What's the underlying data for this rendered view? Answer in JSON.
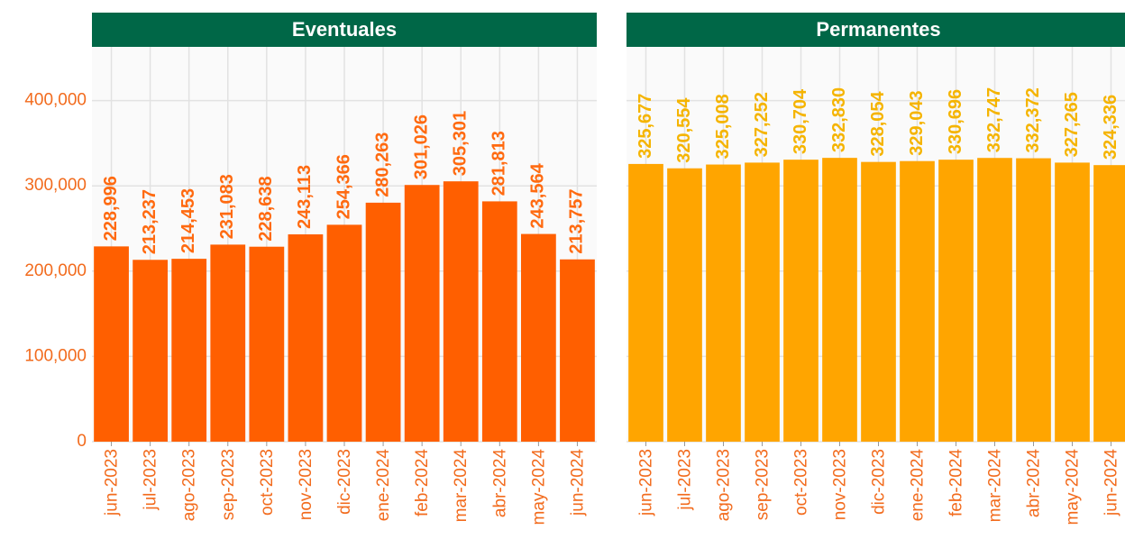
{
  "chart_data": [
    {
      "type": "bar",
      "title": "Eventuales",
      "color": "#ff5f00",
      "label_color": "#ff6a10",
      "categories": [
        "jun-2023",
        "jul-2023",
        "ago-2023",
        "sep-2023",
        "oct-2023",
        "nov-2023",
        "dic-2023",
        "ene-2024",
        "feb-2024",
        "mar-2024",
        "abr-2024",
        "may-2024",
        "jun-2024"
      ],
      "values": [
        228996,
        213237,
        214453,
        231083,
        228638,
        243113,
        254366,
        280263,
        301026,
        305301,
        281813,
        243564,
        213757
      ],
      "value_labels": [
        "228,996",
        "213,237",
        "214,453",
        "231,083",
        "228,638",
        "243,113",
        "254,366",
        "280,263",
        "301,026",
        "305,301",
        "281,813",
        "243,564",
        "213,757"
      ],
      "ylim": [
        0,
        463000
      ],
      "yticks": [
        {
          "value": 0,
          "label": "0"
        },
        {
          "value": 100000,
          "label": "100,000"
        },
        {
          "value": 200000,
          "label": "200,000"
        },
        {
          "value": 300000,
          "label": "300,000"
        },
        {
          "value": 400000,
          "label": "400,000"
        }
      ],
      "grid": true
    },
    {
      "type": "bar",
      "title": "Permanentes",
      "color": "#ffa500",
      "label_color": "#f5b400",
      "categories": [
        "jun-2023",
        "jul-2023",
        "ago-2023",
        "sep-2023",
        "oct-2023",
        "nov-2023",
        "dic-2023",
        "ene-2024",
        "feb-2024",
        "mar-2024",
        "abr-2024",
        "may-2024",
        "jun-2024"
      ],
      "values": [
        325677,
        320554,
        325008,
        327252,
        330704,
        332830,
        328054,
        329043,
        330696,
        332747,
        332372,
        327265,
        324336
      ],
      "value_labels": [
        "325,677",
        "320,554",
        "325,008",
        "327,252",
        "330,704",
        "332,830",
        "328,054",
        "329,043",
        "330,696",
        "332,747",
        "332,372",
        "327,265",
        "324,336"
      ],
      "ylim": [
        0,
        463000
      ],
      "grid": true
    }
  ]
}
